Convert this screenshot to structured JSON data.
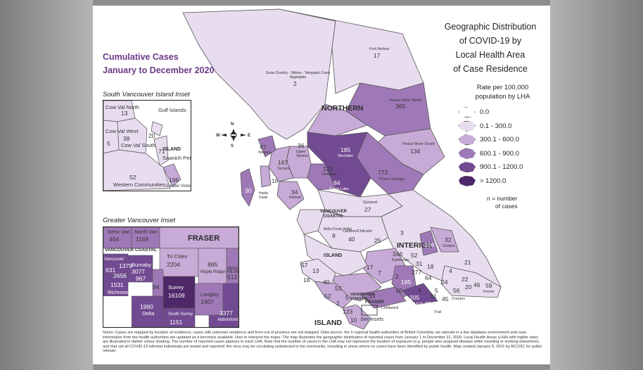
{
  "title_left": {
    "line1": "Cumulative Cases",
    "line2": "January to December 2020"
  },
  "title_right": {
    "line1": "Geographic Distribution",
    "line2": "of COVID-19 by",
    "line3": "Local Health Area",
    "line4": "of Case Residence"
  },
  "legend": {
    "heading1": "Rate per 100,000",
    "heading2": "population by LHA",
    "classes": [
      {
        "label": "0.0",
        "color": "#ffffff"
      },
      {
        "label": "0.1 - 300.0",
        "color": "#e8dcef"
      },
      {
        "label": "300.1 - 600.0",
        "color": "#c7aad6"
      },
      {
        "label": "600.1 - 900.0",
        "color": "#9f79b7"
      },
      {
        "label": "900.1 - 1200.0",
        "color": "#724a92"
      },
      {
        "label": "> 1200.0",
        "color": "#4e2868"
      }
    ],
    "note1": "n = number",
    "note2": "of cases"
  },
  "insets": {
    "south_van_island": "South Vancouver Island Inset",
    "greater_vancouver": "Greater Vancouver Inset"
  },
  "regions": {
    "northern": "NORTHERN",
    "interior": "INTERIOR",
    "van_coastal": "VANCOUVER COASTAL",
    "island": "ISLAND",
    "island_small": "ISLAND",
    "fraser_inset": "FRASER",
    "vc_inset": "VANCOUVER COASTAL",
    "island_inset": "ISLAND",
    "fraser_small": "FRASER",
    "vc_small": "VANCOUVER COASTAL"
  },
  "lha_labels": [
    {
      "name": "Fort Nelson",
      "n": "17"
    },
    {
      "name": "Snow Country - Stikine - Telegraph Creek Aggregate",
      "n": "2"
    },
    {
      "name": "Peace River North",
      "n": "365"
    },
    {
      "name": "Peace River South",
      "n": "134"
    },
    {
      "name": "Prince George",
      "n": "773"
    },
    {
      "name": "Nechako",
      "n": "185"
    },
    {
      "name": "Burns Lake",
      "n": "84"
    },
    {
      "name": "Smithers",
      "n": "122"
    },
    {
      "name": "Terrace",
      "n": "167"
    },
    {
      "name": "Nisga'a",
      "n": "47"
    },
    {
      "name": "Upper Skeena",
      "n": "36"
    },
    {
      "name": "Kitimat",
      "n": "34"
    },
    {
      "name": "Haida Gwaii",
      "n": "30"
    },
    {
      "name": "Quesnel",
      "n": "27"
    },
    {
      "name": "Cariboo/Chilcotin",
      "n": "40"
    },
    {
      "name": "Bella Coola Valley",
      "n": "8"
    },
    {
      "name": "Kamloops",
      "n": "346"
    },
    {
      "name": "Golden",
      "n": "32"
    },
    {
      "name": "Creston",
      "n": "56"
    },
    {
      "name": "Fernie",
      "n": "59"
    }
  ],
  "extra_numbers": [
    "16",
    "25",
    "3",
    "52",
    "18",
    "106",
    "21",
    "4",
    "31",
    "17",
    "7",
    "2",
    "277",
    "64",
    "24",
    "10",
    "5",
    "8",
    "20",
    "46",
    "45",
    "22",
    "53",
    "13",
    "18",
    "40",
    "57",
    "52",
    "2",
    "5",
    "96",
    "123",
    "10",
    "33",
    "205",
    "159",
    "42",
    "195",
    "31"
  ],
  "south_van_island_labels": [
    {
      "name": "Cow Val North",
      "n": "13"
    },
    {
      "name": "Gulf Islands",
      "n": ""
    },
    {
      "name": "Cow Val West",
      "n": "5"
    },
    {
      "name": "Cow Val South",
      "n": "38"
    },
    {
      "name": "",
      "n": "20"
    },
    {
      "name": "Saanich Peninsula",
      "n": "71"
    },
    {
      "name": "Western Communities",
      "n": "52"
    },
    {
      "name": "Greater Victoria",
      "n": "196"
    }
  ],
  "greater_van_labels": [
    {
      "name": "West Van",
      "n": "464"
    },
    {
      "name": "North Van",
      "n": "1169"
    },
    {
      "name": "Tri Cities",
      "n": "2204"
    },
    {
      "name": "Maple Ridge/ Pitt Meadows",
      "n": "885"
    },
    {
      "name": "Mission",
      "n": "512"
    },
    {
      "name": "Burnaby",
      "n": "3077"
    },
    {
      "name": "",
      "n": "1379"
    },
    {
      "name": "",
      "n": "631"
    },
    {
      "name": "Vancouver",
      "n": "2656"
    },
    {
      "name": "",
      "n": "967"
    },
    {
      "name": "",
      "n": "1531"
    },
    {
      "name": "Richmond",
      "n": ""
    },
    {
      "name": "Surrey",
      "n": "16109"
    },
    {
      "name": "Langley",
      "n": "1907"
    },
    {
      "name": "Abbotsford",
      "n": "3377"
    },
    {
      "name": "Delta",
      "n": "1960"
    },
    {
      "name": "South Surrey",
      "n": "1151"
    },
    {
      "name": "",
      "n": "94"
    }
  ],
  "see_insets": "See Insets",
  "chilliwack": "Chilliwack",
  "trail": "Trail",
  "compass": {
    "n": "N",
    "s": "S",
    "e": "E",
    "w": "W"
  },
  "notes": "Notes: Cases are mapped by location of residence; cases with unknown residence and from out of province are not mapped. Data source: the 5 regional health authorities of British Columbia; we operate in a live database environment and case information from the health authorities are updated as it becomes available. How to interpret the maps: The map illustrates the geographic distribution of reported cases from January 1 to December 31, 2020. Local Health Areas (LHA) with higher rates are illustrated in darker colour shading. The number of reported cases appears in each LHA. Note that the number of cases in the LHA may not represent the location of exposure (e.g. people who acquired disease while traveling or working elsewhere), and that not all COVID-19 infected individuals are tested and reported; the virus may be circulating undetected in the community, including in areas where no cases have been identified by public health. Map created January 6, 2021 by BCCDC for public release."
}
